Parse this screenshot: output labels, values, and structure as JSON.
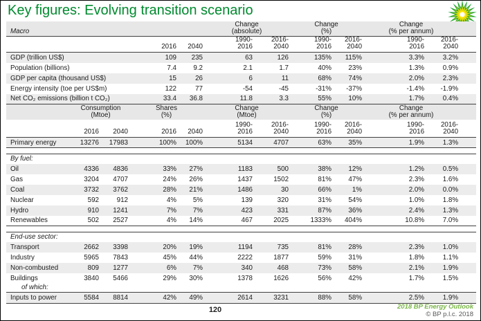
{
  "title": "Key figures: Evolving transition scenario",
  "colors": {
    "title_green": "#008a2e",
    "footer_green": "#7ab648",
    "stripe": "#ececec",
    "band": "#e7e7e7",
    "rule": "#3f3f3f",
    "text": "#1a1a1a",
    "logo_green": "#1aa22e",
    "logo_yellowgreen": "#a8c91c",
    "logo_yellow": "#ffe400",
    "logo_center": "#ffffff"
  },
  "table": {
    "periods": {
      "p1": {
        "line1": "1990-",
        "line2": "2016"
      },
      "p2": {
        "line1": "2016-",
        "line2": "2040"
      }
    },
    "macro": {
      "section_label": "Macro",
      "groups": [
        {
          "line1": "Change",
          "line2": "(absolute)"
        },
        {
          "line1": "Change",
          "line2": "(%)"
        },
        {
          "line1": "Change",
          "line2": "(% per annum)"
        }
      ],
      "years": [
        "2016",
        "2040"
      ]
    },
    "energy": {
      "groups": [
        {
          "line1": "Consumption",
          "line2": "(Mtoe)"
        },
        {
          "line1": "Shares",
          "line2": "(%)"
        },
        {
          "line1": "Change",
          "line2": "(Mtoe)"
        },
        {
          "line1": "Change",
          "line2": "(%)"
        },
        {
          "line1": "Change",
          "line2": "(% per annum)"
        }
      ],
      "years": [
        "2016",
        "2040",
        "2016",
        "2040"
      ]
    },
    "macro_rows": [
      {
        "label": "GDP (trillion US$)",
        "cells": [
          "",
          "",
          "109",
          "235",
          "63",
          "126",
          "135%",
          "115%",
          "3.3%",
          "3.2%"
        ],
        "stripe": true
      },
      {
        "label": "Population (billions)",
        "cells": [
          "",
          "",
          "7.4",
          "9.2",
          "2.1",
          "1.7",
          "40%",
          "23%",
          "1.3%",
          "0.9%"
        ]
      },
      {
        "label": "GDP per capita (thousand US$)",
        "cells": [
          "",
          "",
          "15",
          "26",
          "6",
          "11",
          "68%",
          "74%",
          "2.0%",
          "2.3%"
        ],
        "stripe": true
      },
      {
        "label": "Energy intensity (toe per US$m)",
        "cells": [
          "",
          "",
          "122",
          "77",
          "-54",
          "-45",
          "-31%",
          "-37%",
          "-1.4%",
          "-1.9%"
        ]
      },
      {
        "label": "Net CO₂ emissions (billion t CO₂)",
        "cells": [
          "",
          "",
          "33.4",
          "36.8",
          "11.8",
          "3.3",
          "55%",
          "10%",
          "1.7%",
          "0.4%"
        ],
        "stripe": true,
        "bottom": true
      }
    ],
    "energy_rows": [
      {
        "label": "Primary energy",
        "cells": [
          "13276",
          "17983",
          "100%",
          "100%",
          "5134",
          "4707",
          "63%",
          "35%",
          "1.9%",
          "1.3%"
        ],
        "stripe": true,
        "bottom": true
      },
      {
        "gap": true
      },
      {
        "label": "By fuel:",
        "type": "section",
        "top": true
      },
      {
        "label": "Oil",
        "cells": [
          "4336",
          "4836",
          "33%",
          "27%",
          "1183",
          "500",
          "38%",
          "12%",
          "1.2%",
          "0.5%"
        ],
        "stripe": true
      },
      {
        "label": "Gas",
        "cells": [
          "3204",
          "4707",
          "24%",
          "26%",
          "1437",
          "1502",
          "81%",
          "47%",
          "2.3%",
          "1.6%"
        ]
      },
      {
        "label": "Coal",
        "cells": [
          "3732",
          "3762",
          "28%",
          "21%",
          "1486",
          "30",
          "66%",
          "1%",
          "2.0%",
          "0.0%"
        ],
        "stripe": true
      },
      {
        "label": "Nuclear",
        "cells": [
          "592",
          "912",
          "4%",
          "5%",
          "139",
          "320",
          "31%",
          "54%",
          "1.0%",
          "1.8%"
        ]
      },
      {
        "label": "Hydro",
        "cells": [
          "910",
          "1241",
          "7%",
          "7%",
          "423",
          "331",
          "87%",
          "36%",
          "2.4%",
          "1.3%"
        ],
        "stripe": true
      },
      {
        "label": "Renewables",
        "cells": [
          "502",
          "2527",
          "4%",
          "14%",
          "467",
          "2025",
          "1333%",
          "404%",
          "10.8%",
          "7.0%"
        ],
        "bottom": true
      },
      {
        "gap": true
      },
      {
        "label": "End-use sector:",
        "type": "section",
        "top": true
      },
      {
        "label": "Transport",
        "cells": [
          "2662",
          "3398",
          "20%",
          "19%",
          "1194",
          "735",
          "81%",
          "28%",
          "2.3%",
          "1.0%"
        ],
        "stripe": true
      },
      {
        "label": "Industry",
        "cells": [
          "5965",
          "7843",
          "45%",
          "44%",
          "2222",
          "1877",
          "59%",
          "31%",
          "1.8%",
          "1.1%"
        ]
      },
      {
        "label": "Non-combusted",
        "cells": [
          "809",
          "1277",
          "6%",
          "7%",
          "340",
          "468",
          "73%",
          "58%",
          "2.1%",
          "1.9%"
        ],
        "stripe": true
      },
      {
        "label": "Buildings",
        "cells": [
          "3840",
          "5466",
          "29%",
          "30%",
          "1378",
          "1626",
          "56%",
          "42%",
          "1.7%",
          "1.5%"
        ]
      },
      {
        "label": "of which:",
        "type": "sub"
      },
      {
        "label": "Inputs to power",
        "cells": [
          "5584",
          "8814",
          "42%",
          "49%",
          "2614",
          "3231",
          "88%",
          "58%",
          "2.5%",
          "1.9%"
        ],
        "stripe": true,
        "top": true,
        "bottom": true,
        "last": true
      }
    ]
  },
  "footer": {
    "page_number": "120",
    "outlook": "2018 BP Energy Outlook",
    "copyright": "© BP p.l.c. 2018"
  }
}
